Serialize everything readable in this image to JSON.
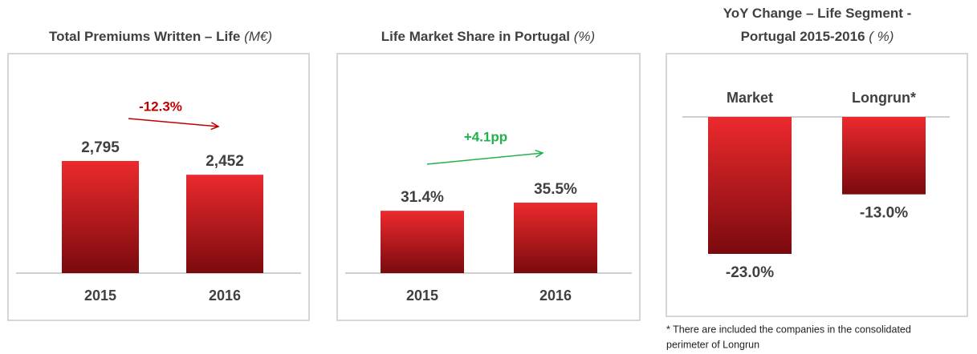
{
  "chart_data": [
    {
      "type": "bar",
      "title": "Total Premiums  Written – Life",
      "unit": "(M€)",
      "categories": [
        "2015",
        "2016"
      ],
      "values": [
        2795,
        2452
      ],
      "value_labels": [
        "2,795",
        "2,452"
      ],
      "annotation": "-12.3%",
      "annotation_color": "#c00000",
      "color": "#d81e22"
    },
    {
      "type": "bar",
      "title": "Life Market Share in Portugal",
      "unit": "(%)",
      "categories": [
        "2015",
        "2016"
      ],
      "values": [
        31.4,
        35.5
      ],
      "value_labels": [
        "31.4%",
        "35.5%"
      ],
      "annotation": "+4.1pp",
      "annotation_color": "#22b14c",
      "color": "#d81e22"
    },
    {
      "type": "bar",
      "title": [
        "YoY Change – Life Segment  -",
        "Portugal 2015-2016"
      ],
      "unit": "( %)",
      "categories": [
        "Market",
        "Longrun*"
      ],
      "values": [
        -23.0,
        -13.0
      ],
      "value_labels": [
        "-23.0%",
        "-13.0%"
      ],
      "color": "#d81e22",
      "footnote": [
        "* There are included the companies in the consolidated",
        "perimeter of Longrun"
      ]
    }
  ]
}
